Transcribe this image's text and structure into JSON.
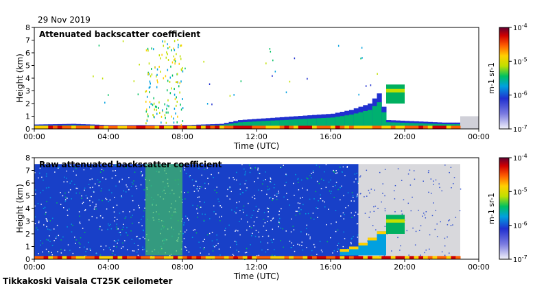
{
  "date": "29 Nov 2019",
  "footer": "Tikkakoski Vaisala CT25K ceilometer",
  "chart_data": [
    {
      "type": "heatmap",
      "title": "Attenuated backscatter coefficient",
      "xlabel": "Time (UTC)",
      "ylabel": "Height (km)",
      "xticks": [
        "00:00",
        "04:00",
        "08:00",
        "12:00",
        "16:00",
        "20:00",
        "00:00"
      ],
      "xlim_hours": [
        0,
        24
      ],
      "ylim_km": [
        0,
        8
      ],
      "yticks": [
        0,
        1,
        2,
        3,
        4,
        5,
        6,
        7,
        8
      ],
      "colorbar": {
        "label": "m-1 sr-1",
        "scale": "log",
        "ticks": [
          "10-7",
          "10-6",
          "10-5",
          "10-4"
        ],
        "range": [
          1e-07,
          0.0001
        ]
      },
      "features": {
        "boundary_layer_top_km": [
          {
            "t": 0,
            "h": 0.35
          },
          {
            "t": 2,
            "h": 0.4
          },
          {
            "t": 4,
            "h": 0.3
          },
          {
            "t": 6,
            "h": 0.3
          },
          {
            "t": 8,
            "h": 0.3
          },
          {
            "t": 10,
            "h": 0.4
          },
          {
            "t": 11,
            "h": 0.7
          },
          {
            "t": 13,
            "h": 0.9
          },
          {
            "t": 14,
            "h": 1.0
          },
          {
            "t": 16,
            "h": 1.2
          },
          {
            "t": 17,
            "h": 1.5
          },
          {
            "t": 18,
            "h": 2.0
          },
          {
            "t": 18.5,
            "h": 2.8
          },
          {
            "t": 19,
            "h": 0.7
          },
          {
            "t": 22,
            "h": 0.5
          }
        ],
        "elevated_cloud_layer": {
          "t_start": 19,
          "t_end": 20,
          "h_bottom_km": 2.0,
          "h_top_km": 3.5
        },
        "precipitation_streaks_hours": [
          6,
          8
        ],
        "no_data_after_hour": 23
      }
    },
    {
      "type": "heatmap",
      "title": "Raw attenuated backscatter coefficient",
      "xlabel": "Time (UTC)",
      "ylabel": "Height (km)",
      "xticks": [
        "00:00",
        "04:00",
        "08:00",
        "12:00",
        "16:00",
        "20:00",
        "00:00"
      ],
      "xlim_hours": [
        0,
        24
      ],
      "ylim_km": [
        0,
        8
      ],
      "yticks": [
        0,
        1,
        2,
        3,
        4,
        5,
        6,
        7,
        8
      ],
      "colorbar": {
        "label": "m-1 sr-1",
        "scale": "log",
        "ticks": [
          "10-7",
          "10-6",
          "10-5",
          "10-4"
        ],
        "range": [
          1e-07,
          0.0001
        ]
      },
      "features": {
        "noise_region_hours": [
          0,
          17.5
        ],
        "noise_top_km": 7.5,
        "grey_region_hours": [
          17.5,
          23
        ],
        "elevated_cloud_layer": {
          "t_start": 19,
          "t_end": 20,
          "h_bottom_km": 2.0,
          "h_top_km": 3.5
        }
      }
    }
  ]
}
